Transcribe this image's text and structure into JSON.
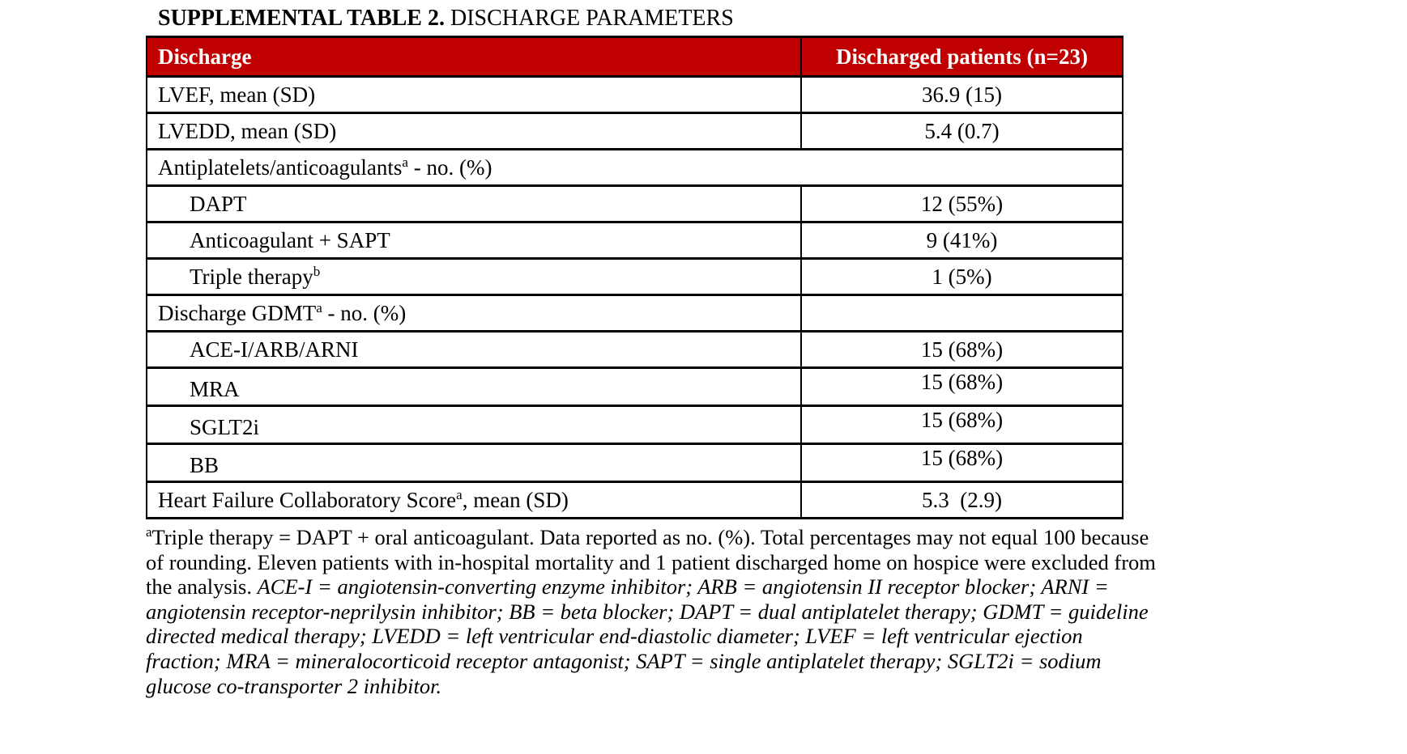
{
  "title": {
    "bold_part": "SUPPLEMENTAL TABLE 2.",
    "regular_part": " DISCHARGE PARAMETERS"
  },
  "colors": {
    "header_bg": "#c00000",
    "header_text": "#ffffff",
    "border": "#000000"
  },
  "table": {
    "header": {
      "col1": "Discharge",
      "col2": "Discharged patients (n=23)"
    },
    "rows": [
      {
        "pre": "LVEF, mean (SD)",
        "sup": "",
        "post": "",
        "value": "36.9 (15)",
        "indent": false,
        "span": false,
        "value_high": false
      },
      {
        "pre": "LVEDD, mean (SD)",
        "sup": "",
        "post": "",
        "value": "5.4 (0.7)",
        "indent": false,
        "span": false,
        "value_high": false
      },
      {
        "pre": "Antiplatelets/anticoagulants",
        "sup": "a",
        "post": " - no. (%)",
        "value": "",
        "indent": false,
        "span": true,
        "value_high": false
      },
      {
        "pre": "DAPT",
        "sup": "",
        "post": "",
        "value": "12 (55%)",
        "indent": true,
        "span": false,
        "value_high": false
      },
      {
        "pre": "Anticoagulant + SAPT",
        "sup": "",
        "post": "",
        "value": "9 (41%)",
        "indent": true,
        "span": false,
        "value_high": false
      },
      {
        "pre": "Triple therapy",
        "sup": "b",
        "post": "",
        "value": "1 (5%)",
        "indent": true,
        "span": false,
        "value_high": false
      },
      {
        "pre": "Discharge GDMT",
        "sup": "a",
        "post": " - no. (%)",
        "value": "",
        "indent": false,
        "span": false,
        "value_high": false
      },
      {
        "pre": "ACE-I/ARB/ARNI",
        "sup": "",
        "post": "",
        "value": "15 (68%)",
        "indent": true,
        "span": false,
        "value_high": false
      },
      {
        "pre": "MRA",
        "sup": "",
        "post": "",
        "value": "15 (68%)",
        "indent": true,
        "span": false,
        "value_high": true
      },
      {
        "pre": "SGLT2i",
        "sup": "",
        "post": "",
        "value": "15 (68%)",
        "indent": true,
        "span": false,
        "value_high": true
      },
      {
        "pre": "BB",
        "sup": "",
        "post": "",
        "value": "15 (68%)",
        "indent": true,
        "span": false,
        "value_high": true
      },
      {
        "pre": "Heart Failure Collaboratory Score",
        "sup": "a",
        "post": ", mean (SD)",
        "value": "5.3  (2.9)",
        "indent": false,
        "span": false,
        "value_high": false
      }
    ]
  },
  "footnote": {
    "marker": "a",
    "plain_text": "Triple therapy = DAPT + oral anticoagulant. Data reported as no. (%). Total percentages may not equal 100 because of rounding. Eleven patients with in-hospital mortality and 1 patient discharged home on hospice were excluded from the analysis. ",
    "italic_text": "ACE-I = angiotensin-converting enzyme inhibitor; ARB = angiotensin II receptor blocker; ARNI = angiotensin receptor-neprilysin inhibitor; BB = beta blocker; DAPT = dual antiplatelet therapy; GDMT = guideline directed medical therapy; LVEDD = left ventricular end-diastolic diameter; LVEF = left ventricular ejection fraction; MRA = mineralocorticoid receptor antagonist; SAPT = single antiplatelet therapy; SGLT2i = sodium glucose co-transporter 2 inhibitor."
  }
}
